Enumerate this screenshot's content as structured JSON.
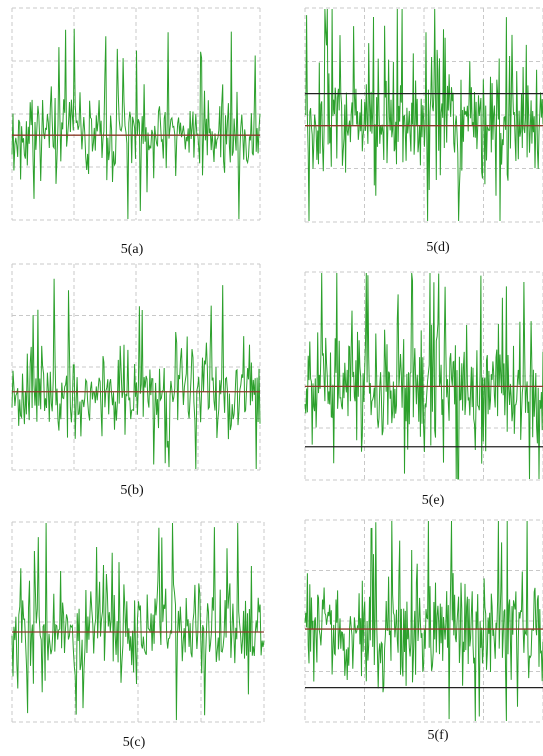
{
  "chart_data": [
    {
      "id": "a",
      "type": "line",
      "caption": "5(a)",
      "color": "#2ca02c",
      "mean_line_color": "#8b3a2a",
      "series": [
        {
          "values": []
        }
      ]
    },
    {
      "id": "b",
      "type": "line",
      "caption": "5(b)",
      "color": "#2ca02c",
      "mean_line_color": "#8b3a2a",
      "series": [
        {
          "values": []
        }
      ]
    },
    {
      "id": "c",
      "type": "line",
      "caption": "5(c)",
      "color": "#2ca02c",
      "mean_line_color": "#8b3a2a",
      "series": [
        {
          "values": []
        }
      ]
    },
    {
      "id": "d",
      "type": "line",
      "caption": "5(d)",
      "color": "#2ca02c",
      "mean_line_color": "#8b3a2a",
      "threshold_line_color": "#222222",
      "series": [
        {
          "values": []
        }
      ]
    },
    {
      "id": "e",
      "type": "line",
      "caption": "5(e)",
      "color": "#2ca02c",
      "mean_line_color": "#8b3a2a",
      "threshold_line_color": "#222222",
      "series": [
        {
          "values": []
        }
      ]
    },
    {
      "id": "f",
      "type": "line",
      "caption": "5(f)",
      "color": "#2ca02c",
      "mean_line_color": "#8b3a2a",
      "threshold_line_color": "#222222",
      "series": [
        {
          "values": []
        }
      ]
    }
  ]
}
